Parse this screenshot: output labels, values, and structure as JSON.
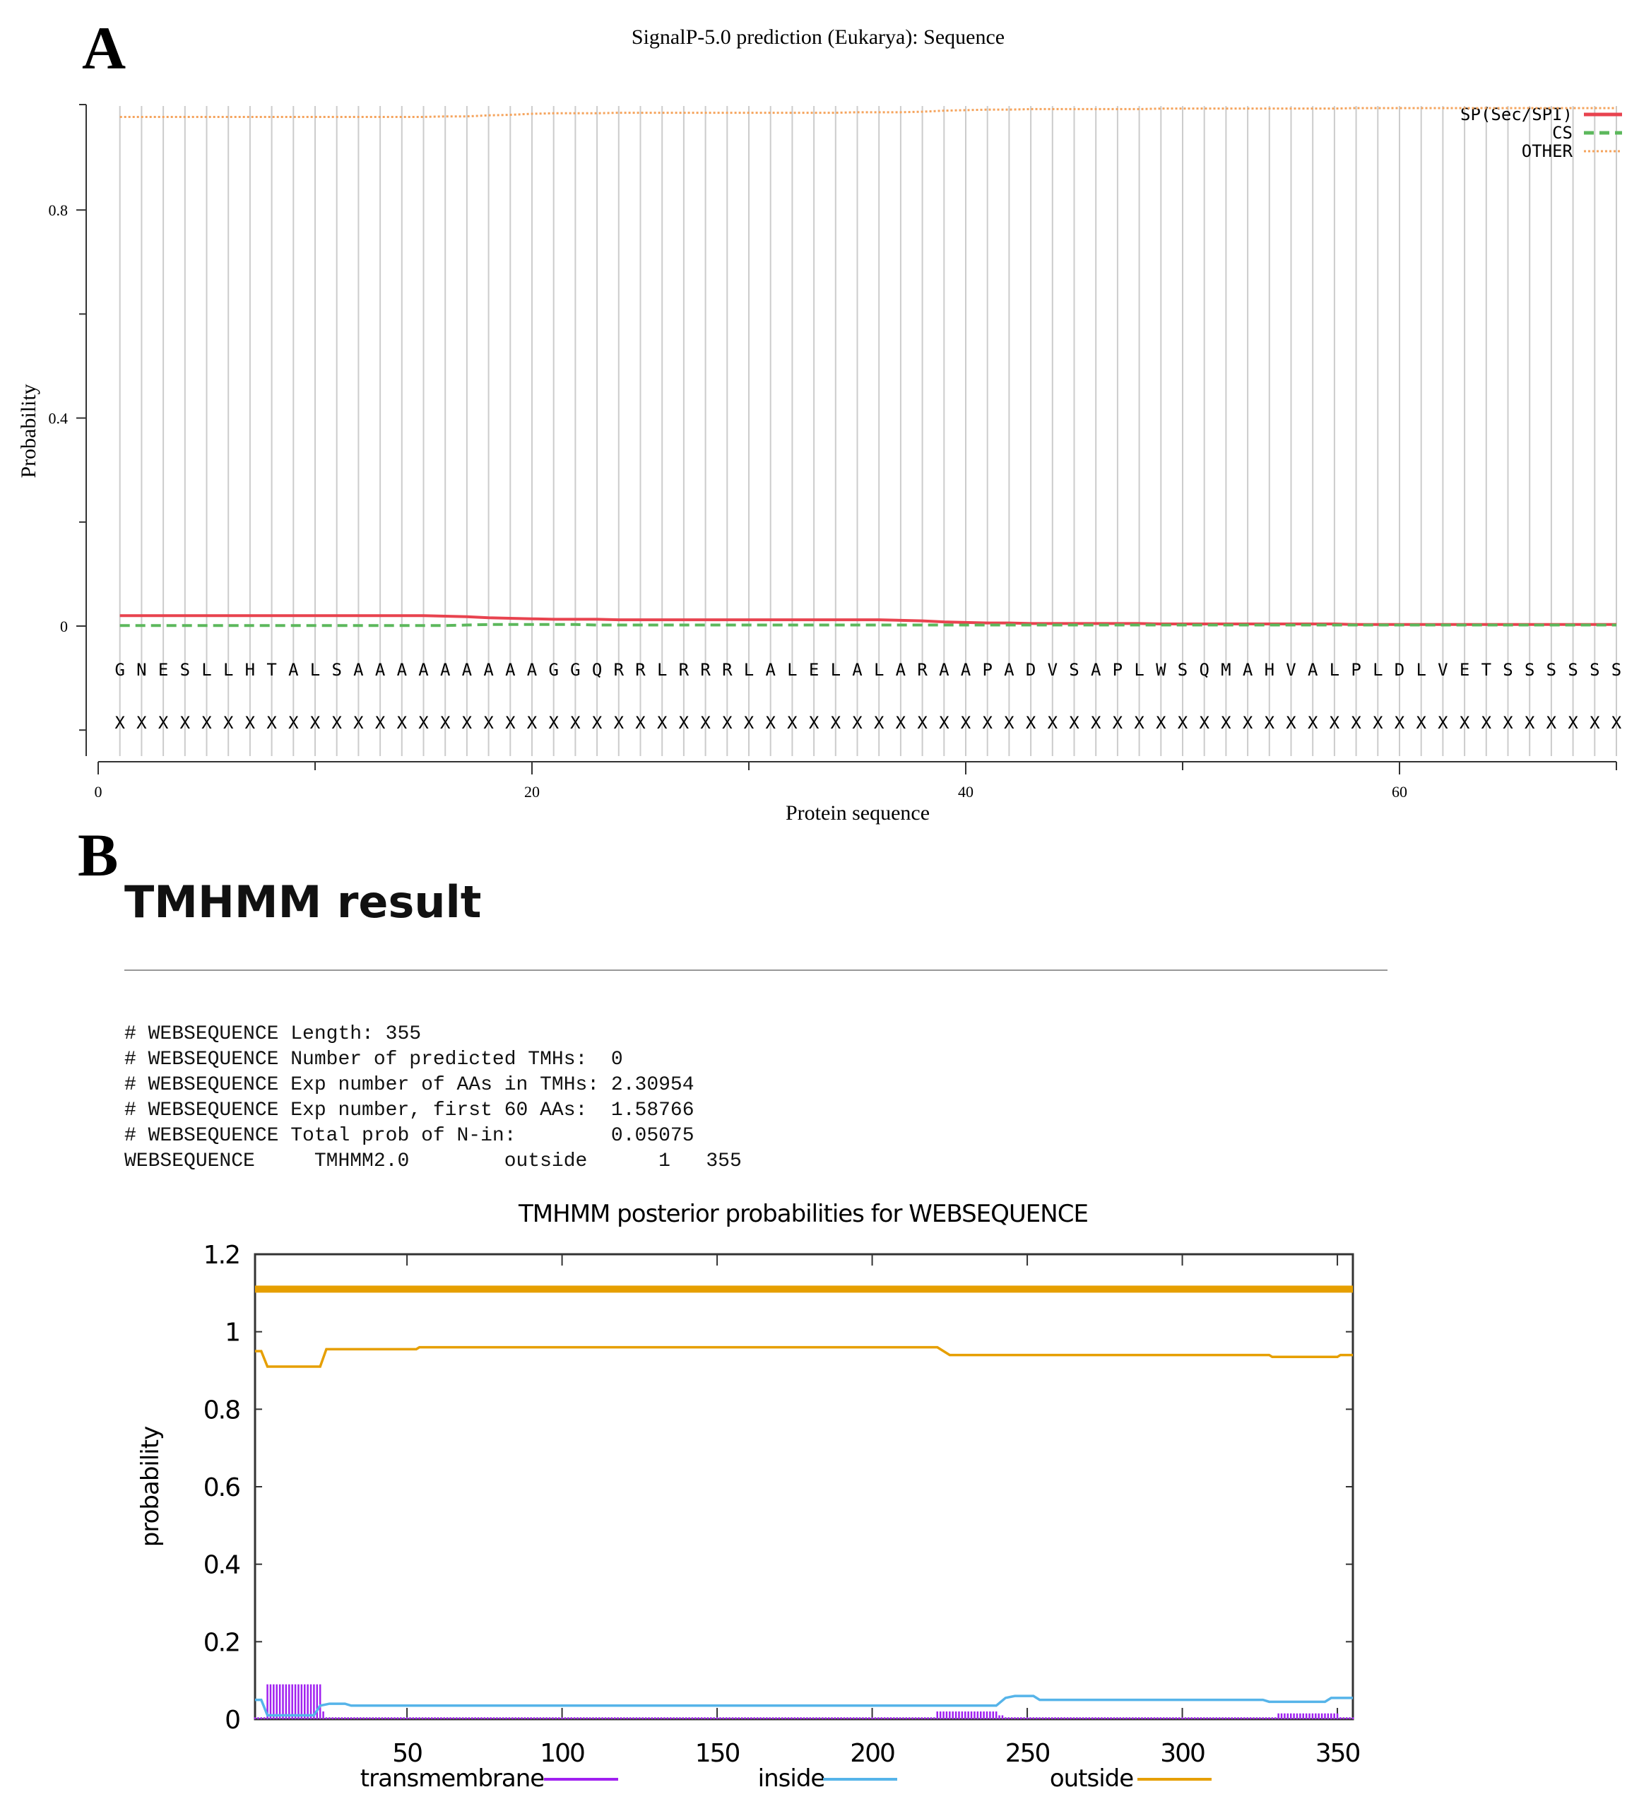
{
  "panel_a": {
    "label": "A"
  },
  "panel_b": {
    "label": "B"
  },
  "tmhmm": {
    "heading": "TMHMM result",
    "summary_lines": [
      "# WEBSEQUENCE Length: 355",
      "# WEBSEQUENCE Number of predicted TMHs:  0",
      "# WEBSEQUENCE Exp number of AAs in TMHs: 2.30954",
      "# WEBSEQUENCE Exp number, first 60 AAs:  1.58766",
      "# WEBSEQUENCE Total prob of N-in:        0.05075",
      "WEBSEQUENCE     TMHMM2.0        outside      1   355"
    ]
  },
  "chart_data": [
    {
      "type": "line",
      "title": "SignalP-5.0 prediction (Eukarya):  Sequence",
      "xlabel": "Protein sequence",
      "ylabel": "Probability",
      "xlim": [
        0,
        70
      ],
      "ylim": [
        -0.25,
        1.0
      ],
      "x_ticks": [
        0,
        20,
        40,
        60
      ],
      "x_minor_ticks": [
        10,
        30,
        50,
        70
      ],
      "y_ticks": [
        "0",
        "0.4",
        "0.8"
      ],
      "y_tick_values": [
        0,
        0.4,
        0.8
      ],
      "y_minor_ticks": [
        -0.2,
        0.2,
        0.6
      ],
      "grid": "vertical lines per residue",
      "legend_position": "top-right",
      "sequence": [
        "G",
        "N",
        "E",
        "S",
        "L",
        "L",
        "H",
        "T",
        "A",
        "L",
        "S",
        "A",
        "A",
        "A",
        "A",
        "A",
        "A",
        "A",
        "A",
        "A",
        "G",
        "G",
        "Q",
        "R",
        "R",
        "L",
        "R",
        "R",
        "R",
        "L",
        "A",
        "L",
        "E",
        "L",
        "A",
        "L",
        "A",
        "R",
        "A",
        "A",
        "P",
        "A",
        "D",
        "V",
        "S",
        "A",
        "P",
        "L",
        "W",
        "S",
        "Q",
        "M",
        "A",
        "H",
        "V",
        "A",
        "L",
        "P",
        "L",
        "D",
        "L",
        "V",
        "E",
        "T",
        "S",
        "S",
        "S",
        "S",
        "S",
        "S"
      ],
      "annotation": [
        "X",
        "X",
        "X",
        "X",
        "X",
        "X",
        "X",
        "X",
        "X",
        "X",
        "X",
        "X",
        "X",
        "X",
        "X",
        "X",
        "X",
        "X",
        "X",
        "X",
        "X",
        "X",
        "X",
        "X",
        "X",
        "X",
        "X",
        "X",
        "X",
        "X",
        "X",
        "X",
        "X",
        "X",
        "X",
        "X",
        "X",
        "X",
        "X",
        "X",
        "X",
        "X",
        "X",
        "X",
        "X",
        "X",
        "X",
        "X",
        "X",
        "X",
        "X",
        "X",
        "X",
        "X",
        "X",
        "X",
        "X",
        "X",
        "X",
        "X",
        "X",
        "X",
        "X",
        "X",
        "X",
        "X",
        "X",
        "X",
        "X",
        "X"
      ],
      "series": [
        {
          "name": "SP(Sec/SPI)",
          "color": "#e8434f",
          "style": "solid",
          "values": [
            0.02,
            0.02,
            0.02,
            0.02,
            0.02,
            0.02,
            0.02,
            0.02,
            0.02,
            0.02,
            0.02,
            0.02,
            0.02,
            0.02,
            0.02,
            0.019,
            0.018,
            0.016,
            0.015,
            0.014,
            0.013,
            0.013,
            0.013,
            0.012,
            0.012,
            0.012,
            0.012,
            0.012,
            0.012,
            0.012,
            0.012,
            0.012,
            0.012,
            0.012,
            0.012,
            0.012,
            0.011,
            0.01,
            0.008,
            0.007,
            0.006,
            0.006,
            0.005,
            0.005,
            0.005,
            0.005,
            0.005,
            0.005,
            0.004,
            0.004,
            0.004,
            0.004,
            0.004,
            0.004,
            0.004,
            0.004,
            0.004,
            0.003,
            0.003,
            0.003,
            0.003,
            0.003,
            0.003,
            0.003,
            0.003,
            0.003,
            0.003,
            0.003,
            0.003,
            0.003
          ]
        },
        {
          "name": "CS",
          "color": "#5cb85c",
          "style": "dashed",
          "values": [
            0.001,
            0.001,
            0.001,
            0.001,
            0.001,
            0.001,
            0.001,
            0.001,
            0.001,
            0.001,
            0.001,
            0.001,
            0.001,
            0.001,
            0.001,
            0.001,
            0.002,
            0.003,
            0.003,
            0.003,
            0.003,
            0.003,
            0.002,
            0.002,
            0.002,
            0.002,
            0.002,
            0.002,
            0.002,
            0.002,
            0.002,
            0.002,
            0.002,
            0.002,
            0.002,
            0.002,
            0.002,
            0.002,
            0.002,
            0.002,
            0.002,
            0.002,
            0.002,
            0.002,
            0.002,
            0.002,
            0.002,
            0.002,
            0.002,
            0.002,
            0.002,
            0.002,
            0.002,
            0.002,
            0.002,
            0.002,
            0.002,
            0.002,
            0.002,
            0.002,
            0.002,
            0.002,
            0.002,
            0.002,
            0.002,
            0.002,
            0.002,
            0.002,
            0.002,
            0.002
          ]
        },
        {
          "name": "OTHER",
          "color": "#f5a45d",
          "style": "dotted",
          "values": [
            0.979,
            0.979,
            0.979,
            0.979,
            0.979,
            0.979,
            0.979,
            0.979,
            0.979,
            0.979,
            0.979,
            0.979,
            0.979,
            0.979,
            0.979,
            0.98,
            0.98,
            0.982,
            0.983,
            0.985,
            0.986,
            0.986,
            0.986,
            0.987,
            0.987,
            0.987,
            0.987,
            0.987,
            0.987,
            0.987,
            0.987,
            0.987,
            0.987,
            0.987,
            0.988,
            0.988,
            0.988,
            0.989,
            0.991,
            0.992,
            0.993,
            0.993,
            0.994,
            0.994,
            0.994,
            0.994,
            0.994,
            0.994,
            0.995,
            0.995,
            0.995,
            0.995,
            0.995,
            0.995,
            0.995,
            0.995,
            0.995,
            0.996,
            0.996,
            0.996,
            0.996,
            0.996,
            0.996,
            0.996,
            0.996,
            0.996,
            0.996,
            0.996,
            0.996,
            0.996
          ]
        }
      ]
    },
    {
      "type": "line",
      "title": "TMHMM posterior probabilities for WEBSEQUENCE",
      "xlabel": "",
      "ylabel": "probability",
      "xlim": [
        1,
        355
      ],
      "ylim": [
        0,
        1.2
      ],
      "x_ticks": [
        50,
        100,
        150,
        200,
        250,
        300,
        350
      ],
      "y_ticks": [
        "0",
        "0.2",
        "0.4",
        "0.6",
        "0.8",
        "1",
        "1.2"
      ],
      "y_tick_values": [
        0,
        0.2,
        0.4,
        0.6,
        0.8,
        1,
        1.2
      ],
      "legend_position": "bottom",
      "outside_region_bar": {
        "from": 1,
        "to": 355,
        "y": 1.11,
        "color": "#e69f00"
      },
      "series": [
        {
          "name": "transmembrane",
          "color": "#a020f0",
          "style": "impulses",
          "points": [
            [
              1,
              0.005
            ],
            [
              4,
              0.09
            ],
            [
              21,
              0.09
            ],
            [
              22,
              0.02
            ],
            [
              23,
              0.005
            ],
            [
              26,
              0.005
            ],
            [
              30,
              0.005
            ],
            [
              55,
              0.005
            ],
            [
              90,
              0.005
            ],
            [
              112,
              0.005
            ],
            [
              185,
              0.005
            ],
            [
              212,
              0.005
            ],
            [
              217,
              0.005
            ],
            [
              220,
              0.02
            ],
            [
              238,
              0.02
            ],
            [
              240,
              0.01
            ],
            [
              242,
              0.005
            ],
            [
              250,
              0.005
            ],
            [
              290,
              0.005
            ],
            [
              328,
              0.005
            ],
            [
              330,
              0.015
            ],
            [
              348,
              0.015
            ],
            [
              350,
              0.005
            ],
            [
              355,
              0.005
            ]
          ]
        },
        {
          "name": "inside",
          "color": "#56b4e9",
          "style": "line",
          "points": [
            [
              1,
              0.05
            ],
            [
              3,
              0.05
            ],
            [
              5,
              0.01
            ],
            [
              20,
              0.01
            ],
            [
              22,
              0.035
            ],
            [
              25,
              0.04
            ],
            [
              30,
              0.04
            ],
            [
              32,
              0.035
            ],
            [
              240,
              0.035
            ],
            [
              243,
              0.055
            ],
            [
              246,
              0.06
            ],
            [
              252,
              0.06
            ],
            [
              254,
              0.05
            ],
            [
              326,
              0.05
            ],
            [
              328,
              0.045
            ],
            [
              346,
              0.045
            ],
            [
              348,
              0.055
            ],
            [
              355,
              0.055
            ]
          ]
        },
        {
          "name": "outside",
          "color": "#e69f00",
          "style": "line",
          "points": [
            [
              1,
              0.95
            ],
            [
              3,
              0.95
            ],
            [
              5,
              0.91
            ],
            [
              22,
              0.91
            ],
            [
              24,
              0.955
            ],
            [
              53,
              0.955
            ],
            [
              54,
              0.96
            ],
            [
              221,
              0.96
            ],
            [
              225,
              0.94
            ],
            [
              328,
              0.94
            ],
            [
              329,
              0.935
            ],
            [
              350,
              0.935
            ],
            [
              351,
              0.94
            ],
            [
              355,
              0.94
            ]
          ]
        }
      ]
    }
  ]
}
